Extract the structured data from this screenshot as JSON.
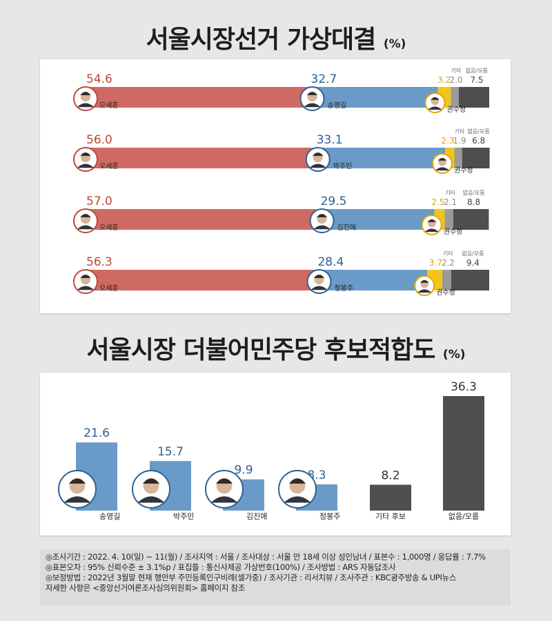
{
  "title1": {
    "text": "서울시장선거 가상대결",
    "unit": "(%)"
  },
  "title2": {
    "text": "서울시장 더불어민주당 후보적합도",
    "unit": "(%)"
  },
  "chart_data": [
    {
      "type": "bar",
      "subtype": "stacked-horizontal",
      "title": "서울시장선거 가상대결",
      "unit": "%",
      "extra_labels": {
        "other": "기타",
        "none": "없음/모름"
      },
      "colors": {
        "oh": "#cf6a62",
        "dem": "#6a9ac8",
        "kwon": "#f3c518",
        "other": "#9a9a9a",
        "none": "#4e4e4e"
      },
      "matchups": [
        {
          "oh_name": "오세훈",
          "oh": 54.6,
          "dem_name": "송영길",
          "dem": 32.7,
          "kwon_name": "권수정",
          "kwon": 3.2,
          "other": 2.0,
          "none": 7.5
        },
        {
          "oh_name": "오세훈",
          "oh": 56.0,
          "dem_name": "박주민",
          "dem": 33.1,
          "kwon_name": "권수정",
          "kwon": 2.3,
          "other": 1.9,
          "none": 6.8
        },
        {
          "oh_name": "오세훈",
          "oh": 57.0,
          "dem_name": "김진애",
          "dem": 29.5,
          "kwon_name": "권수정",
          "kwon": 2.5,
          "other": 2.1,
          "none": 8.8
        },
        {
          "oh_name": "오세훈",
          "oh": 56.3,
          "dem_name": "정봉주",
          "dem": 28.4,
          "kwon_name": "권수정",
          "kwon": 3.7,
          "other": 2.2,
          "none": 9.4
        }
      ]
    },
    {
      "type": "bar",
      "title": "서울시장 더불어민주당 후보적합도",
      "unit": "%",
      "categories": [
        "송영길",
        "박주민",
        "김진애",
        "정봉주",
        "기타 후보",
        "없음/모름"
      ],
      "values": [
        21.6,
        15.7,
        9.9,
        8.3,
        8.2,
        36.3
      ],
      "colors": [
        "#6a9ac8",
        "#6a9ac8",
        "#6a9ac8",
        "#6a9ac8",
        "#4e4e4e",
        "#4e4e4e"
      ],
      "ylim": [
        0,
        36.3
      ]
    }
  ],
  "notes": [
    "◎조사기간 : 2022. 4. 10(일) ~ 11(월) / 조사지역 : 서울 / 조사대상 : 서울 만 18세 이상 성인남녀 / 표본수 : 1,000명 / 응답률 : 7.7%",
    "◎표본오차 : 95% 신뢰수준 ± 3.1%p / 표집틀 : 통신사제공 가상번호(100%) / 조사방법 : ARS 자동답조사",
    "◎보정방법 : 2022년 3월말 현재 행안부 주민등록인구비례(셀가중) / 조사기관 : 리서치뷰 / 조사주관 :  KBC광주방송 & UPI뉴스",
    "자세한 사항은 <중앙선거여론조사심의위원회> 홈페이지 참조"
  ]
}
